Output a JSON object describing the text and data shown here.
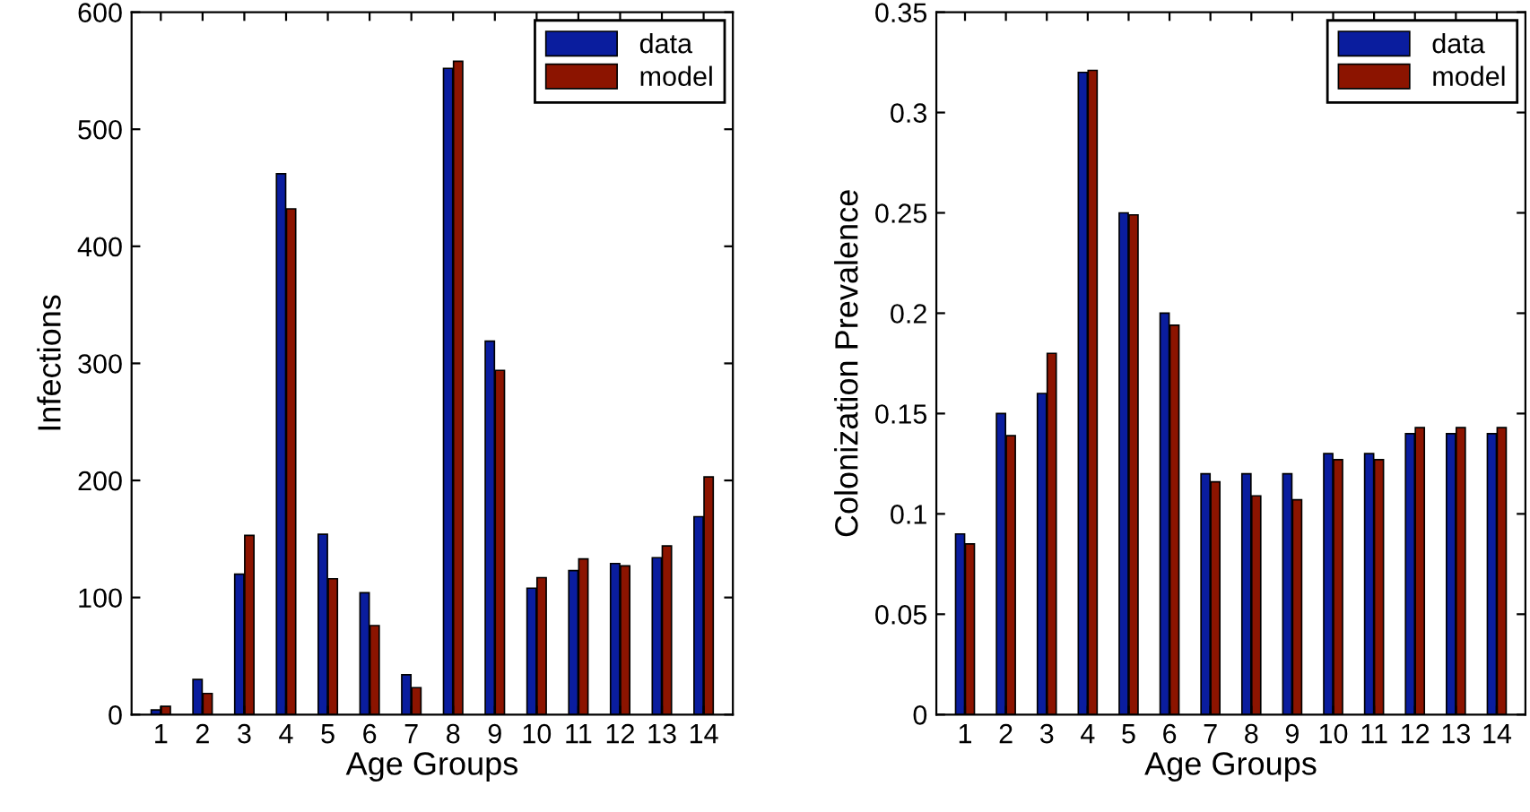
{
  "chart_data": [
    {
      "type": "bar",
      "xlabel": "Age Groups",
      "ylabel": "Infections",
      "categories": [
        "1",
        "2",
        "3",
        "4",
        "5",
        "6",
        "7",
        "8",
        "9",
        "10",
        "11",
        "12",
        "13",
        "14"
      ],
      "series": [
        {
          "name": "data",
          "color": "#0a1d9e",
          "values": [
            4,
            30,
            120,
            462,
            154,
            104,
            34,
            552,
            319,
            108,
            123,
            129,
            134,
            169
          ]
        },
        {
          "name": "model",
          "color": "#8c1400",
          "values": [
            7,
            18,
            153,
            432,
            116,
            76,
            23,
            558,
            294,
            117,
            133,
            127,
            144,
            203
          ]
        }
      ],
      "ylim": [
        0,
        600
      ],
      "yticks": [
        0,
        100,
        200,
        300,
        400,
        500,
        600
      ],
      "legend": "top right",
      "grid": false
    },
    {
      "type": "bar",
      "xlabel": "Age Groups",
      "ylabel": "Colonization Prevalence",
      "categories": [
        "1",
        "2",
        "3",
        "4",
        "5",
        "6",
        "7",
        "8",
        "9",
        "10",
        "11",
        "12",
        "13",
        "14"
      ],
      "series": [
        {
          "name": "data",
          "color": "#0a1d9e",
          "values": [
            0.09,
            0.15,
            0.16,
            0.32,
            0.25,
            0.2,
            0.12,
            0.12,
            0.12,
            0.13,
            0.13,
            0.14,
            0.14,
            0.14
          ]
        },
        {
          "name": "model",
          "color": "#8c1400",
          "values": [
            0.085,
            0.139,
            0.18,
            0.321,
            0.249,
            0.194,
            0.116,
            0.109,
            0.107,
            0.127,
            0.127,
            0.143,
            0.143,
            0.143
          ]
        }
      ],
      "ylim": [
        0,
        0.35
      ],
      "yticks": [
        0,
        0.05,
        0.1,
        0.15,
        0.2,
        0.25,
        0.3,
        0.35
      ],
      "legend": "top right",
      "grid": false
    }
  ]
}
